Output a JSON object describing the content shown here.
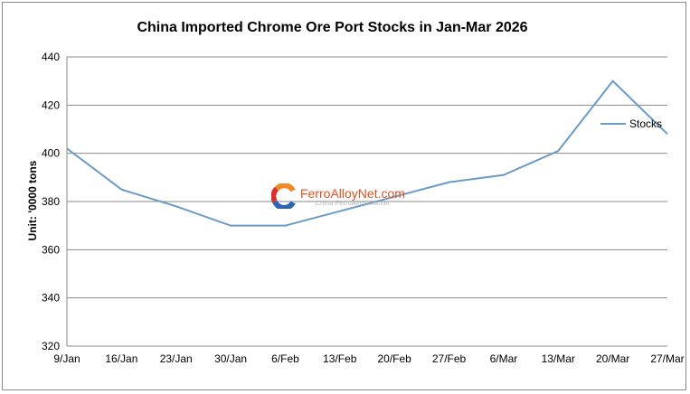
{
  "chart_data": {
    "type": "line",
    "title": "China Imported Chrome Ore Port Stocks in Jan-Mar 2026",
    "xlabel": "",
    "ylabel": "Unit: '0000 tons",
    "categories": [
      "9/Jan",
      "16/Jan",
      "23/Jan",
      "30/Jan",
      "6/Feb",
      "13/Feb",
      "20/Feb",
      "27/Feb",
      "6/Mar",
      "13/Mar",
      "20/Mar",
      "27/Mar"
    ],
    "series": [
      {
        "name": "Stocks",
        "color": "#6a9bc8",
        "values": [
          402,
          385,
          378,
          370,
          370,
          376,
          382,
          388,
          391,
          401,
          430,
          408
        ]
      }
    ],
    "ylim": [
      320,
      440
    ],
    "yticks": [
      320,
      340,
      360,
      380,
      400,
      420,
      440
    ],
    "grid": true,
    "legend_position": "right"
  },
  "watermark": {
    "name": "FerroAlloyNet.com",
    "subtitle": "China FerroAlloy Market"
  }
}
